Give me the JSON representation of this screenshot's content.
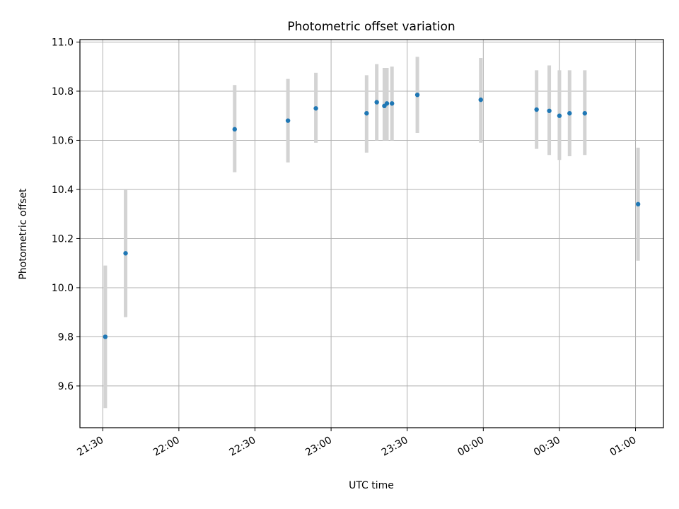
{
  "chart_data": {
    "type": "scatter",
    "title": "Photometric offset variation",
    "xlabel": "UTC time",
    "ylabel": "Photometric offset",
    "xlim_minutes_from_2130": [
      -9,
      221
    ],
    "ylim": [
      9.43,
      11.01
    ],
    "grid": true,
    "x_ticks": [
      {
        "label": "21:30",
        "value": "21:30"
      },
      {
        "label": "22:00",
        "value": "22:00"
      },
      {
        "label": "22:30",
        "value": "22:30"
      },
      {
        "label": "23:00",
        "value": "23:00"
      },
      {
        "label": "23:30",
        "value": "23:30"
      },
      {
        "label": "00:00",
        "value": "00:00"
      },
      {
        "label": "00:30",
        "value": "00:30"
      },
      {
        "label": "01:00",
        "value": "01:00"
      }
    ],
    "y_ticks": [
      "9.6",
      "9.8",
      "10.0",
      "10.2",
      "10.4",
      "10.6",
      "10.8",
      "11.0"
    ],
    "series": [
      {
        "marker_color": "#1f77b4",
        "errorbar_color": "#d3d3d3",
        "points": [
          {
            "x": "21:31",
            "y": 9.8,
            "ylo": 9.51,
            "yhi": 10.09
          },
          {
            "x": "21:39",
            "y": 10.14,
            "ylo": 9.88,
            "yhi": 10.4
          },
          {
            "x": "22:22",
            "y": 10.645,
            "ylo": 10.47,
            "yhi": 10.825
          },
          {
            "x": "22:43",
            "y": 10.68,
            "ylo": 10.51,
            "yhi": 10.85
          },
          {
            "x": "22:54",
            "y": 10.73,
            "ylo": 10.59,
            "yhi": 10.875
          },
          {
            "x": "23:14",
            "y": 10.71,
            "ylo": 10.55,
            "yhi": 10.865
          },
          {
            "x": "23:18",
            "y": 10.755,
            "ylo": 10.6,
            "yhi": 10.91
          },
          {
            "x": "23:21",
            "y": 10.74,
            "ylo": 10.6,
            "yhi": 10.895
          },
          {
            "x": "23:22",
            "y": 10.75,
            "ylo": 10.6,
            "yhi": 10.895
          },
          {
            "x": "23:24",
            "y": 10.75,
            "ylo": 10.6,
            "yhi": 10.9
          },
          {
            "x": "23:34",
            "y": 10.785,
            "ylo": 10.63,
            "yhi": 10.94
          },
          {
            "x": "23:59",
            "y": 10.765,
            "ylo": 10.59,
            "yhi": 10.935
          },
          {
            "x": "00:21",
            "y": 10.725,
            "ylo": 10.565,
            "yhi": 10.885
          },
          {
            "x": "00:26",
            "y": 10.72,
            "ylo": 10.54,
            "yhi": 10.905
          },
          {
            "x": "00:30",
            "y": 10.7,
            "ylo": 10.52,
            "yhi": 10.885
          },
          {
            "x": "00:34",
            "y": 10.71,
            "ylo": 10.535,
            "yhi": 10.885
          },
          {
            "x": "00:40",
            "y": 10.71,
            "ylo": 10.54,
            "yhi": 10.885
          },
          {
            "x": "01:01",
            "y": 10.34,
            "ylo": 10.11,
            "yhi": 10.57
          }
        ]
      }
    ]
  }
}
